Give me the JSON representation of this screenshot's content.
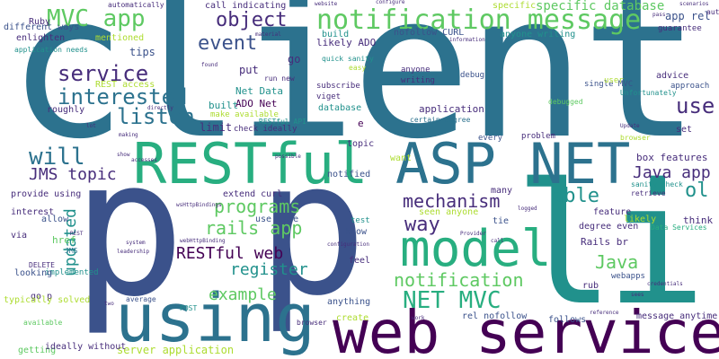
{
  "colors": {
    "teal": "#2c728e",
    "indigo": "#3b528b",
    "green": "#21918c",
    "emerald": "#28ae80",
    "lime": "#5ec962",
    "yellowgreen": "#addc30",
    "purple": "#472d7b",
    "darkpurple": "#440154",
    "violet": "#482878"
  },
  "words": [
    {
      "text": "client"
    },
    {
      "text": "p"
    },
    {
      "text": "p"
    },
    {
      "text": "li"
    },
    {
      "text": "using"
    },
    {
      "text": "web service"
    },
    {
      "text": "RESTful"
    },
    {
      "text": "ASP NET"
    },
    {
      "text": "model"
    },
    {
      "text": "notification message"
    },
    {
      "text": "MVC app"
    },
    {
      "text": "object"
    },
    {
      "text": "event"
    },
    {
      "text": "service"
    },
    {
      "text": "interested"
    },
    {
      "text": "listen"
    },
    {
      "text": "will"
    },
    {
      "text": "JMS topic"
    },
    {
      "text": "programs"
    },
    {
      "text": "rails app"
    },
    {
      "text": "RESTful web"
    },
    {
      "text": "register"
    },
    {
      "text": "example"
    },
    {
      "text": "updated"
    },
    {
      "text": "mechanism"
    },
    {
      "text": "way"
    },
    {
      "text": "able"
    },
    {
      "text": "notification"
    },
    {
      "text": "NET MVC"
    },
    {
      "text": "Java"
    },
    {
      "text": "use"
    },
    {
      "text": "Java app"
    },
    {
      "text": "ol"
    },
    {
      "text": "specific database"
    },
    {
      "text": "app rel"
    },
    {
      "text": "server application"
    },
    {
      "text": "tips"
    },
    {
      "text": "put"
    },
    {
      "text": "Net Data"
    },
    {
      "text": "ADO Net"
    },
    {
      "text": "built"
    },
    {
      "text": "limit"
    },
    {
      "text": "application"
    },
    {
      "text": "certain degree"
    },
    {
      "text": "database"
    },
    {
      "text": "topic"
    },
    {
      "text": "notified"
    },
    {
      "text": "want"
    },
    {
      "text": "e"
    },
    {
      "text": "anyone writing"
    },
    {
      "text": "likely ADO"
    },
    {
      "text": "nofollow CURL"
    },
    {
      "text": "quick sanity"
    },
    {
      "text": "build"
    },
    {
      "text": "call indicating"
    },
    {
      "text": "Ruby"
    },
    {
      "text": "mentioned"
    },
    {
      "text": "REST access"
    },
    {
      "text": "enlighten"
    },
    {
      "text": "different ways"
    },
    {
      "text": "roughly"
    },
    {
      "text": "provide using"
    },
    {
      "text": "interest"
    },
    {
      "text": "allow"
    },
    {
      "text": "href"
    },
    {
      "text": "via"
    },
    {
      "text": "DELETE"
    },
    {
      "text": "JMS"
    },
    {
      "text": "implemented"
    },
    {
      "text": "go p"
    },
    {
      "text": "looking"
    },
    {
      "text": "typically solved"
    },
    {
      "text": "getting"
    },
    {
      "text": "available"
    },
    {
      "text": "ideally without"
    },
    {
      "text": "average"
    },
    {
      "text": "POST"
    },
    {
      "text": "browser"
    },
    {
      "text": "anything"
    },
    {
      "text": "create"
    },
    {
      "text": "rel nofollow"
    },
    {
      "text": "follows"
    },
    {
      "text": "message anytime"
    },
    {
      "text": "feel"
    },
    {
      "text": "know"
    },
    {
      "text": "test"
    },
    {
      "text": "tie"
    },
    {
      "text": "seen anyone"
    },
    {
      "text": "many"
    },
    {
      "text": "feature"
    },
    {
      "text": "likely"
    },
    {
      "text": "think"
    },
    {
      "text": "box features"
    },
    {
      "text": "Rails br"
    },
    {
      "text": "degree even"
    },
    {
      "text": "webapps"
    },
    {
      "text": "rub"
    },
    {
      "text": "Data Services"
    },
    {
      "text": "sanity check"
    },
    {
      "text": "retrieve"
    },
    {
      "text": "extend curl"
    },
    {
      "text": "use case"
    },
    {
      "text": "RESTful API"
    },
    {
      "text": "run new"
    },
    {
      "text": "subscribe"
    },
    {
      "text": "viget"
    },
    {
      "text": "make available"
    },
    {
      "text": "check ideally"
    },
    {
      "text": "anyone"
    },
    {
      "text": "writing"
    },
    {
      "text": "debug"
    },
    {
      "text": "easy"
    },
    {
      "text": "single MVC"
    },
    {
      "text": "every"
    },
    {
      "text": "problem"
    },
    {
      "text": "debugged"
    },
    {
      "text": "set"
    },
    {
      "text": "approach"
    },
    {
      "text": "advice"
    },
    {
      "text": "guarantee"
    },
    {
      "text": "automate tests"
    },
    {
      "text": "Unfortunately"
    },
    {
      "text": "browser"
    },
    {
      "text": "user"
    },
    {
      "text": "application needs"
    },
    {
      "text": "automatically"
    },
    {
      "text": "configure"
    },
    {
      "text": "website"
    },
    {
      "text": "information"
    },
    {
      "text": "material"
    },
    {
      "text": "found"
    },
    {
      "text": "directly"
    },
    {
      "text": "making"
    },
    {
      "text": "show"
    },
    {
      "text": "accesses"
    },
    {
      "text": "system"
    },
    {
      "text": "leadership"
    },
    {
      "text": "Provider"
    },
    {
      "text": "configuration"
    },
    {
      "text": "logged"
    },
    {
      "text": "call"
    },
    {
      "text": "work"
    },
    {
      "text": "credentials"
    },
    {
      "text": "sees"
    },
    {
      "text": "Update"
    },
    {
      "text": "scenarios"
    },
    {
      "text": "pass"
    },
    {
      "text": "REST"
    },
    {
      "text": "possible"
    },
    {
      "text": "wsHttpBindings"
    },
    {
      "text": "webHttpBinding"
    },
    {
      "text": "reference"
    },
    {
      "text": "two"
    },
    {
      "text": "lot"
    },
    {
      "text": "specific"
    },
    {
      "text": "go"
    }
  ]
}
